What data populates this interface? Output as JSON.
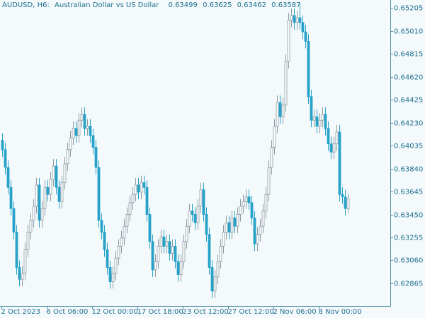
{
  "chart_data": {
    "type": "candlestick",
    "title": "AUDUSD, H6:",
    "subtitle": "Australian Dollar vs US Dollar",
    "categories": [
      "2 Oct 2023",
      null,
      null,
      null,
      null,
      null,
      null,
      null,
      null,
      null,
      null,
      null,
      null,
      null,
      null,
      null,
      "6 Oct 06:00",
      null,
      null,
      null,
      null,
      null,
      null,
      null,
      null,
      null,
      null,
      null,
      null,
      null,
      null,
      null,
      "12 Oct 00:00",
      null,
      null,
      null,
      null,
      null,
      null,
      null,
      null,
      null,
      null,
      null,
      null,
      null,
      null,
      null,
      "17 Oct 18:00",
      null,
      null,
      null,
      null,
      null,
      null,
      null,
      null,
      null,
      null,
      null,
      null,
      null,
      null,
      null,
      "23 Oct 12:00",
      null,
      null,
      null,
      null,
      null,
      null,
      null,
      null,
      null,
      null,
      null,
      null,
      null,
      null,
      null,
      "27 Oct 12:00",
      null,
      null,
      null,
      null,
      null,
      null,
      null,
      null,
      null,
      null,
      null,
      null,
      null,
      null,
      null,
      "2 Nov 06:00",
      null,
      null,
      null,
      null,
      null,
      null,
      null,
      null,
      null,
      null,
      null,
      null,
      null,
      null,
      null,
      "8 Nov 00:00",
      null,
      null,
      null,
      null,
      null,
      null,
      null,
      null,
      null,
      null
    ],
    "open": [
      0.6408,
      0.64,
      0.6385,
      0.6368,
      0.635,
      0.633,
      0.63,
      0.629,
      0.6295,
      0.6315,
      0.633,
      0.634,
      0.6352,
      0.637,
      0.634,
      0.635,
      0.6368,
      0.6362,
      0.6375,
      0.6386,
      0.6368,
      0.6356,
      0.6372,
      0.6388,
      0.64,
      0.641,
      0.6418,
      0.6412,
      0.6425,
      0.643,
      0.6418,
      0.642,
      0.6412,
      0.6402,
      0.6385,
      0.634,
      0.633,
      0.6315,
      0.63,
      0.6288,
      0.6295,
      0.6308,
      0.6318,
      0.6325,
      0.6335,
      0.6345,
      0.6355,
      0.6362,
      0.637,
      0.6364,
      0.6372,
      0.6368,
      0.6345,
      0.6322,
      0.6298,
      0.6305,
      0.6318,
      0.6326,
      0.6318,
      0.6322,
      0.6312,
      0.6318,
      0.6305,
      0.6294,
      0.6305,
      0.6322,
      0.6335,
      0.6348,
      0.6345,
      0.6338,
      0.6352,
      0.6366,
      0.6345,
      0.6328,
      0.63,
      0.628,
      0.6292,
      0.6305,
      0.6318,
      0.633,
      0.6338,
      0.633,
      0.6342,
      0.6335,
      0.6345,
      0.6352,
      0.6356,
      0.636,
      0.6355,
      0.6342,
      0.632,
      0.6328,
      0.6335,
      0.6348,
      0.6362,
      0.6385,
      0.6402,
      0.642,
      0.644,
      0.6428,
      0.6438,
      0.6475,
      0.651,
      0.6514,
      0.6508,
      0.6512,
      0.6508,
      0.65,
      0.6492,
      0.6445,
      0.6425,
      0.6428,
      0.642,
      0.6425,
      0.643,
      0.6418,
      0.6405,
      0.6398,
      0.6405,
      0.6415,
      0.6362,
      0.636,
      0.63499
    ],
    "high": [
      0.6414,
      0.6406,
      0.6391,
      0.6374,
      0.6356,
      0.6336,
      0.6306,
      0.6301,
      0.6321,
      0.6336,
      0.6346,
      0.6358,
      0.6376,
      0.6376,
      0.6356,
      0.6374,
      0.6374,
      0.6381,
      0.6392,
      0.6392,
      0.6374,
      0.6378,
      0.6394,
      0.6406,
      0.6416,
      0.6424,
      0.6424,
      0.6431,
      0.6436,
      0.6436,
      0.6426,
      0.6426,
      0.6418,
      0.6408,
      0.6391,
      0.6346,
      0.6336,
      0.6321,
      0.6306,
      0.6301,
      0.6314,
      0.6324,
      0.6331,
      0.6341,
      0.6351,
      0.6361,
      0.6368,
      0.6376,
      0.6376,
      0.6378,
      0.6378,
      0.6374,
      0.6351,
      0.6328,
      0.6311,
      0.6324,
      0.6332,
      0.6332,
      0.6328,
      0.6328,
      0.6324,
      0.6324,
      0.6311,
      0.6311,
      0.6328,
      0.6341,
      0.6354,
      0.6354,
      0.6351,
      0.6358,
      0.6372,
      0.6372,
      0.6351,
      0.6334,
      0.6306,
      0.6298,
      0.6311,
      0.6324,
      0.6336,
      0.6344,
      0.6344,
      0.6348,
      0.6348,
      0.6351,
      0.6358,
      0.6362,
      0.6366,
      0.6366,
      0.6361,
      0.6348,
      0.6334,
      0.6341,
      0.6354,
      0.6368,
      0.6391,
      0.6408,
      0.6426,
      0.6446,
      0.6446,
      0.6444,
      0.6481,
      0.6516,
      0.652,
      0.652,
      0.6518,
      0.6524,
      0.6514,
      0.6506,
      0.6498,
      0.6451,
      0.6434,
      0.6434,
      0.6431,
      0.6436,
      0.6436,
      0.6424,
      0.6411,
      0.6411,
      0.6421,
      0.6421,
      0.6368,
      0.6366,
      0.63625
    ],
    "low": [
      0.6394,
      0.6379,
      0.6362,
      0.6344,
      0.6324,
      0.6294,
      0.6284,
      0.6284,
      0.6289,
      0.6309,
      0.6324,
      0.6334,
      0.6346,
      0.6334,
      0.6334,
      0.6344,
      0.6356,
      0.6356,
      0.6369,
      0.6362,
      0.635,
      0.635,
      0.6366,
      0.6382,
      0.6394,
      0.6404,
      0.6406,
      0.6406,
      0.6419,
      0.6412,
      0.6412,
      0.6406,
      0.6396,
      0.6379,
      0.6334,
      0.6324,
      0.6309,
      0.6294,
      0.6282,
      0.6282,
      0.6289,
      0.6302,
      0.6312,
      0.6319,
      0.6329,
      0.6339,
      0.6349,
      0.6356,
      0.6358,
      0.6358,
      0.6362,
      0.6339,
      0.6316,
      0.6292,
      0.6292,
      0.6299,
      0.6312,
      0.6312,
      0.6312,
      0.6306,
      0.6306,
      0.6299,
      0.6288,
      0.6288,
      0.6299,
      0.6316,
      0.6329,
      0.6339,
      0.6332,
      0.6332,
      0.6346,
      0.6339,
      0.6322,
      0.6294,
      0.6274,
      0.6274,
      0.6286,
      0.6299,
      0.6312,
      0.6324,
      0.6324,
      0.6324,
      0.6329,
      0.6329,
      0.6339,
      0.6346,
      0.635,
      0.6349,
      0.6336,
      0.6314,
      0.6314,
      0.6322,
      0.6329,
      0.6342,
      0.6356,
      0.6379,
      0.6396,
      0.6414,
      0.6422,
      0.6422,
      0.6432,
      0.6469,
      0.6504,
      0.6502,
      0.6502,
      0.6502,
      0.6494,
      0.6486,
      0.6439,
      0.6419,
      0.6419,
      0.6414,
      0.6414,
      0.6419,
      0.6412,
      0.6399,
      0.6392,
      0.6392,
      0.6399,
      0.6356,
      0.6354,
      0.6344,
      0.63462
    ],
    "close": [
      0.64,
      0.6385,
      0.6368,
      0.635,
      0.633,
      0.63,
      0.629,
      0.6295,
      0.6315,
      0.633,
      0.634,
      0.6352,
      0.637,
      0.634,
      0.635,
      0.6368,
      0.6362,
      0.6375,
      0.6386,
      0.6368,
      0.6356,
      0.6372,
      0.6388,
      0.64,
      0.641,
      0.6418,
      0.6412,
      0.6425,
      0.643,
      0.6418,
      0.642,
      0.6412,
      0.6402,
      0.6385,
      0.634,
      0.633,
      0.6315,
      0.63,
      0.6288,
      0.6295,
      0.6308,
      0.6318,
      0.6325,
      0.6335,
      0.6345,
      0.6355,
      0.6362,
      0.637,
      0.6364,
      0.6372,
      0.6368,
      0.6345,
      0.6322,
      0.6298,
      0.6305,
      0.6318,
      0.6326,
      0.6318,
      0.6322,
      0.6312,
      0.6318,
      0.6305,
      0.6294,
      0.6305,
      0.6322,
      0.6335,
      0.6348,
      0.6345,
      0.6338,
      0.6352,
      0.6366,
      0.6345,
      0.6328,
      0.63,
      0.628,
      0.6292,
      0.6305,
      0.6318,
      0.633,
      0.6338,
      0.633,
      0.6342,
      0.6335,
      0.6345,
      0.6352,
      0.6356,
      0.636,
      0.6355,
      0.6342,
      0.632,
      0.6328,
      0.6335,
      0.6348,
      0.6362,
      0.6385,
      0.6402,
      0.642,
      0.644,
      0.6428,
      0.6438,
      0.6475,
      0.651,
      0.6514,
      0.6508,
      0.6512,
      0.6508,
      0.65,
      0.6492,
      0.6445,
      0.6425,
      0.6428,
      0.642,
      0.6425,
      0.643,
      0.6418,
      0.6405,
      0.6398,
      0.6405,
      0.6415,
      0.6362,
      0.636,
      0.635,
      0.63587
    ],
    "ylim": [
      0.62673,
      0.65271
    ],
    "yticks": [
      0.65205,
      {
        "value": 0.6501,
        "label": "0.65010"
      },
      0.64815,
      {
        "value": 0.6462,
        "label": "0.64620"
      },
      0.64425,
      {
        "value": 0.6423,
        "label": "0.64230"
      },
      0.64035,
      {
        "value": 0.6384,
        "label": "0.63840"
      },
      0.63645,
      {
        "value": 0.6345,
        "label": "0.63450"
      },
      0.63255,
      {
        "value": 0.6306,
        "label": "0.63060"
      },
      0.62865
    ],
    "up_color": "#ffffff",
    "down_color": "#27a2c9",
    "wick_color": "#8d9ba2",
    "grid": false
  }
}
